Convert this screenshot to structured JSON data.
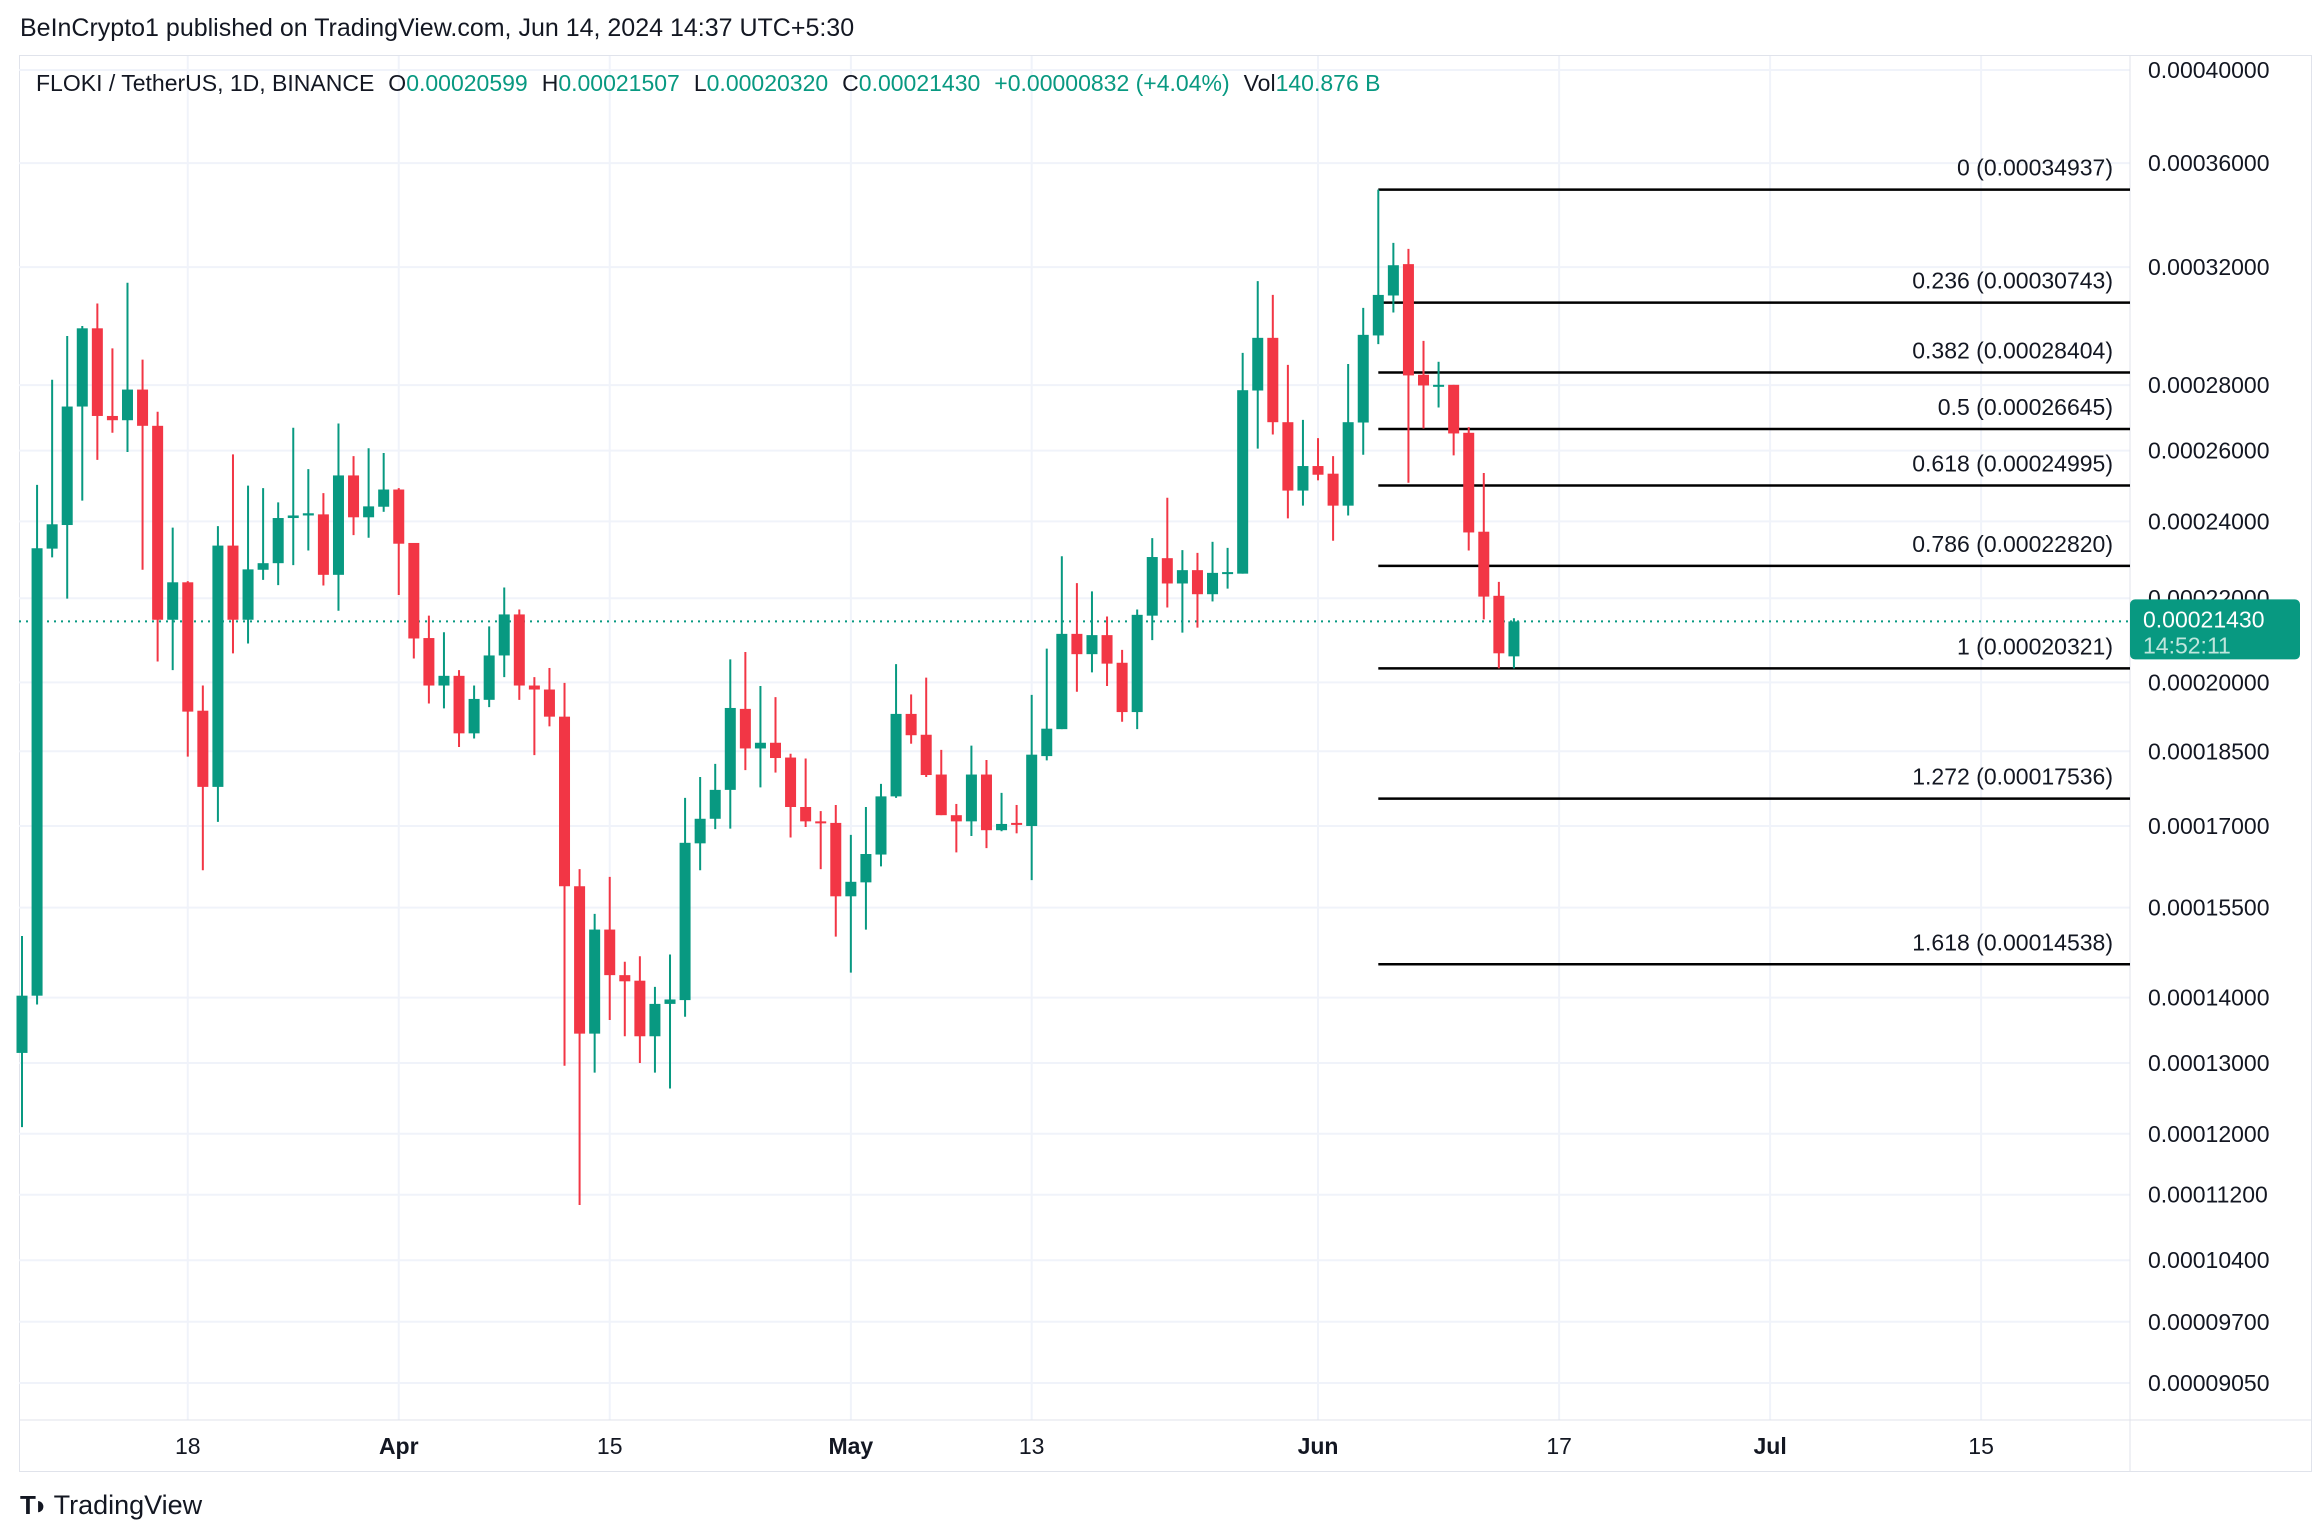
{
  "header": {
    "publish_line": "BeInCrypto1 published on TradingView.com, Jun 14, 2024 14:37 UTC+5:30"
  },
  "legend": {
    "symbol": "FLOKI / TetherUS, 1D, BINANCE",
    "o_label": "O",
    "o_value": "0.00020599",
    "h_label": "H",
    "h_value": "0.00021507",
    "l_label": "L",
    "l_value": "0.00020320",
    "c_label": "C",
    "c_value": "0.00021430",
    "change": "+0.00000832 (+4.04%)",
    "vol_label": "Vol",
    "vol_value": "140.876 B"
  },
  "last_price": {
    "price": "0.00021430",
    "countdown": "14:52:11"
  },
  "footer": {
    "brand": "TradingView"
  },
  "colors": {
    "up": "#089981",
    "down": "#f23645",
    "grid": "#f0f3fa",
    "fib": "#000000"
  },
  "chart_data": {
    "type": "candlestick",
    "scale": "log",
    "ylim": [
      8.8e-05,
      0.00041
    ],
    "x_range_days": [
      -1,
      137
    ],
    "grid": true,
    "y_ticks": [
      {
        "label": "0.00040000",
        "value": 0.0004
      },
      {
        "label": "0.00036000",
        "value": 0.00036
      },
      {
        "label": "0.00032000",
        "value": 0.00032
      },
      {
        "label": "0.00028000",
        "value": 0.00028
      },
      {
        "label": "0.00026000",
        "value": 0.00026
      },
      {
        "label": "0.00024000",
        "value": 0.00024
      },
      {
        "label": "0.00022000",
        "value": 0.00022
      },
      {
        "label": "0.00020000",
        "value": 0.0002
      },
      {
        "label": "0.00018500",
        "value": 0.000185
      },
      {
        "label": "0.00017000",
        "value": 0.00017
      },
      {
        "label": "0.00015500",
        "value": 0.000155
      },
      {
        "label": "0.00014000",
        "value": 0.00014
      },
      {
        "label": "0.00013000",
        "value": 0.00013
      },
      {
        "label": "0.00012000",
        "value": 0.00012
      },
      {
        "label": "0.00011200",
        "value": 0.000112
      },
      {
        "label": "0.00010400",
        "value": 0.000104
      },
      {
        "label": "0.00009700",
        "value": 9.7e-05
      },
      {
        "label": "0.00009050",
        "value": 9.05e-05
      }
    ],
    "x_ticks": [
      {
        "label": "18",
        "day": 11,
        "bold": false
      },
      {
        "label": "Apr",
        "day": 25,
        "bold": true
      },
      {
        "label": "15",
        "day": 39,
        "bold": false
      },
      {
        "label": "May",
        "day": 55,
        "bold": true
      },
      {
        "label": "13",
        "day": 67,
        "bold": false
      },
      {
        "label": "Jun",
        "day": 86,
        "bold": true
      },
      {
        "label": "17",
        "day": 102,
        "bold": false
      },
      {
        "label": "Jul",
        "day": 116,
        "bold": true
      },
      {
        "label": "15",
        "day": 130,
        "bold": false
      }
    ],
    "fib_levels": [
      {
        "label": "0 (0.00034937)",
        "price": 0.00034937
      },
      {
        "label": "0.236 (0.00030743)",
        "price": 0.00030743
      },
      {
        "label": "0.382 (0.00028404)",
        "price": 0.00028404
      },
      {
        "label": "0.5 (0.00026645)",
        "price": 0.00026645
      },
      {
        "label": "0.618 (0.00024995)",
        "price": 0.00024995
      },
      {
        "label": "0.786 (0.00022820)",
        "price": 0.0002282
      },
      {
        "label": "1 (0.00020321)",
        "price": 0.00020321
      },
      {
        "label": "1.272 (0.00017536)",
        "price": 0.00017536
      },
      {
        "label": "1.618 (0.00014538)",
        "price": 0.00014538
      }
    ],
    "fib_start_day": 90,
    "current_price": 0.0002143,
    "candles_ohlc": [
      [
        0.0001315,
        0.0001501,
        0.0001209,
        0.0001403
      ],
      [
        0.0001403,
        0.0002501,
        0.0001389,
        0.0002328
      ],
      [
        0.0002327,
        0.0002817,
        0.0002304,
        0.0002392
      ],
      [
        0.000239,
        0.000296,
        0.0002199,
        0.0002733
      ],
      [
        0.0002733,
        0.0002994,
        0.0002457,
        0.0002986
      ],
      [
        0.0002986,
        0.0003071,
        0.0002573,
        0.0002704
      ],
      [
        0.0002704,
        0.0002919,
        0.0002653,
        0.0002691
      ],
      [
        0.0002691,
        0.0003144,
        0.0002596,
        0.0002786
      ],
      [
        0.0002786,
        0.0002882,
        0.0002272,
        0.0002674
      ],
      [
        0.0002674,
        0.0002717,
        0.0002048,
        0.0002147
      ],
      [
        0.0002147,
        0.0002383,
        0.0002028,
        0.000224
      ],
      [
        0.000224,
        0.0002243,
        0.0001839,
        0.0001935
      ],
      [
        0.0001937,
        0.0001993,
        0.0001617,
        0.0001777
      ],
      [
        0.0001777,
        0.0002387,
        0.0001708,
        0.0002335
      ],
      [
        0.0002335,
        0.0002589,
        0.0002067,
        0.0002147
      ],
      [
        0.0002147,
        0.0002499,
        0.000209,
        0.0002273
      ],
      [
        0.0002272,
        0.0002492,
        0.0002246,
        0.0002289
      ],
      [
        0.0002289,
        0.0002452,
        0.0002233,
        0.0002409
      ],
      [
        0.0002409,
        0.0002668,
        0.0002284,
        0.0002416
      ],
      [
        0.0002416,
        0.0002546,
        0.0002322,
        0.0002422
      ],
      [
        0.0002419,
        0.0002478,
        0.0002232,
        0.0002259
      ],
      [
        0.0002259,
        0.0002681,
        0.0002169,
        0.0002528
      ],
      [
        0.0002528,
        0.0002584,
        0.0002363,
        0.0002411
      ],
      [
        0.0002411,
        0.0002607,
        0.0002356,
        0.0002441
      ],
      [
        0.000244,
        0.0002593,
        0.0002426,
        0.0002488
      ],
      [
        0.0002488,
        0.0002492,
        0.0002208,
        0.000234
      ],
      [
        0.0002342,
        0.0002342,
        0.0002055,
        0.0002102
      ],
      [
        0.0002103,
        0.0002157,
        0.0001953,
        0.0001993
      ],
      [
        0.0001993,
        0.0002117,
        0.0001942,
        0.0002015
      ],
      [
        0.0002015,
        0.0002028,
        0.0001859,
        0.0001888
      ],
      [
        0.0001888,
        0.0001993,
        0.0001877,
        0.0001963
      ],
      [
        0.0001961,
        0.0002131,
        0.0001945,
        0.0002062
      ],
      [
        0.0002062,
        0.0002227,
        0.0002012,
        0.000216
      ],
      [
        0.000216,
        0.0002172,
        0.0001961,
        0.0001993
      ],
      [
        0.0001993,
        0.0002012,
        0.0001842,
        0.0001984
      ],
      [
        0.0001984,
        0.0002033,
        0.0001903,
        0.0001924
      ],
      [
        0.0001924,
        0.0001999,
        0.0001296,
        0.0001588
      ],
      [
        0.0001588,
        0.0001619,
        0.0001107,
        0.0001344
      ],
      [
        0.0001344,
        0.0001539,
        0.0001286,
        0.0001512
      ],
      [
        0.0001512,
        0.0001605,
        0.0001365,
        0.0001436
      ],
      [
        0.0001436,
        0.0001458,
        0.000134,
        0.0001426
      ],
      [
        0.0001427,
        0.0001467,
        0.00013,
        0.000134
      ],
      [
        0.000134,
        0.0001417,
        0.0001286,
        0.000139
      ],
      [
        0.000139,
        0.000147,
        0.0001263,
        0.0001397
      ],
      [
        0.0001396,
        0.0001755,
        0.000137,
        0.0001668
      ],
      [
        0.0001667,
        0.0001797,
        0.0001617,
        0.0001714
      ],
      [
        0.0001714,
        0.0001824,
        0.0001694,
        0.0001771
      ],
      [
        0.0001771,
        0.0002053,
        0.0001695,
        0.0001943
      ],
      [
        0.0001941,
        0.000207,
        0.0001811,
        0.0001856
      ],
      [
        0.0001856,
        0.0001992,
        0.0001776,
        0.0001868
      ],
      [
        0.0001868,
        0.0001967,
        0.0001806,
        0.0001836
      ],
      [
        0.0001837,
        0.0001845,
        0.0001678,
        0.0001737
      ],
      [
        0.0001737,
        0.0001835,
        0.0001698,
        0.0001709
      ],
      [
        0.0001709,
        0.0001729,
        0.0001619,
        0.0001706
      ],
      [
        0.0001706,
        0.0001741,
        0.00015,
        0.000157
      ],
      [
        0.000157,
        0.0001683,
        0.000144,
        0.0001596
      ],
      [
        0.0001595,
        0.0001737,
        0.0001512,
        0.0001647
      ],
      [
        0.0001646,
        0.0001783,
        0.0001624,
        0.0001758
      ],
      [
        0.0001758,
        0.0002042,
        0.0001755,
        0.000193
      ],
      [
        0.000193,
        0.0001973,
        0.0001866,
        0.0001884
      ],
      [
        0.0001885,
        0.0002011,
        0.0001797,
        0.0001801
      ],
      [
        0.0001802,
        0.0001853,
        0.0001721,
        0.0001721
      ],
      [
        0.0001721,
        0.0001743,
        0.000165,
        0.0001709
      ],
      [
        0.0001709,
        0.0001862,
        0.0001681,
        0.0001802
      ],
      [
        0.0001802,
        0.0001832,
        0.0001658,
        0.0001692
      ],
      [
        0.0001692,
        0.0001765,
        0.000169,
        0.0001704
      ],
      [
        0.0001706,
        0.0001741,
        0.0001686,
        0.0001704
      ],
      [
        0.00017,
        0.0001972,
        0.0001599,
        0.0001843
      ],
      [
        0.000184,
        0.0002078,
        0.0001831,
        0.0001898
      ],
      [
        0.0001897,
        0.0002307,
        0.0001897,
        0.0002113
      ],
      [
        0.0002113,
        0.0002238,
        0.0001979,
        0.0002065
      ],
      [
        0.0002065,
        0.0002217,
        0.0002023,
        0.000211
      ],
      [
        0.000211,
        0.0002155,
        0.0001992,
        0.0002043
      ],
      [
        0.0002045,
        0.0002075,
        0.0001913,
        0.0001934
      ],
      [
        0.0001934,
        0.0002172,
        0.0001897,
        0.0002159
      ],
      [
        0.0002157,
        0.0002355,
        0.0002098,
        0.0002305
      ],
      [
        0.0002302,
        0.0002465,
        0.0002177,
        0.0002237
      ],
      [
        0.0002237,
        0.0002323,
        0.0002116,
        0.0002271
      ],
      [
        0.0002271,
        0.0002316,
        0.0002128,
        0.000221
      ],
      [
        0.000221,
        0.0002345,
        0.0002192,
        0.0002264
      ],
      [
        0.0002264,
        0.0002329,
        0.0002224,
        0.0002266
      ],
      [
        0.0002262,
        0.0002904,
        0.0002262,
        0.0002784
      ],
      [
        0.0002783,
        0.000315,
        0.0002606,
        0.0002954
      ],
      [
        0.0002954,
        0.0003101,
        0.0002648,
        0.0002685
      ],
      [
        0.0002685,
        0.0002865,
        0.0002408,
        0.0002485
      ],
      [
        0.0002485,
        0.0002692,
        0.0002443,
        0.0002555
      ],
      [
        0.0002555,
        0.0002637,
        0.0002514,
        0.000253
      ],
      [
        0.0002533,
        0.0002584,
        0.0002348,
        0.0002443
      ],
      [
        0.0002443,
        0.0002868,
        0.0002416,
        0.0002685
      ],
      [
        0.0002684,
        0.0003056,
        0.0002588,
        0.0002964
      ],
      [
        0.0002962,
        0.00034937,
        0.0002933,
        0.0003101
      ],
      [
        0.0003099,
        0.0003289,
        0.000304,
        0.0003207
      ],
      [
        0.0003211,
        0.0003267,
        0.0002507,
        0.0002831
      ],
      [
        0.0002833,
        0.0002944,
        0.0002666,
        0.0002799
      ],
      [
        0.0002801,
        0.0002875,
        0.000273,
        0.0002801
      ],
      [
        0.0002801,
        0.0002801,
        0.0002586,
        0.0002651
      ],
      [
        0.0002653,
        0.000267,
        0.0002322,
        0.000237
      ],
      [
        0.0002372,
        0.0002535,
        0.0002148,
        0.0002204
      ],
      [
        0.0002206,
        0.0002241,
        0.0002032,
        0.0002067
      ],
      [
        0.00020599,
        0.00021507,
        0.0002032,
        0.0002143
      ]
    ]
  }
}
